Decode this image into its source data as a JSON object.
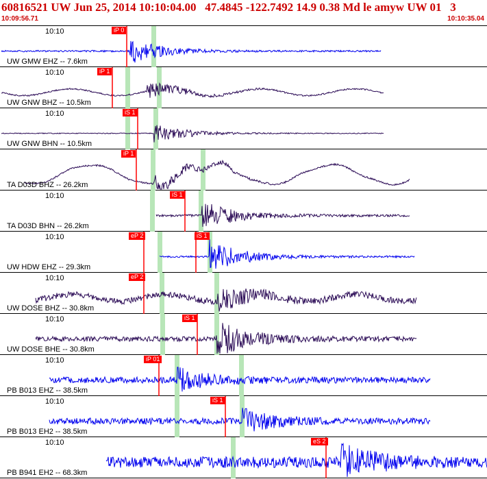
{
  "header": {
    "title": "60816521 UW Jun 25, 2014 10:10:04.00   47.4845 -122.7492 14.9 0.38 Md le amyw UW 01   3",
    "start_time": "10:09:56.71",
    "end_time": "10:10:35.04"
  },
  "colors": {
    "header_text": "#cc0000",
    "trace_blue": "#0000ee",
    "trace_purple": "#2a0a55",
    "pick_red": "#ff0000",
    "pick_band": "#b8e6b8"
  },
  "tick_label": "10:10",
  "traces": [
    {
      "label": "UW GMW EHZ -- 7.6km",
      "tick": "10:10",
      "color": "blue",
      "pick": {
        "text": "iP 0"
      },
      "pick2": null
    },
    {
      "label": "UW GNW BHZ -- 10.5km",
      "tick": "10:10",
      "color": "purple",
      "pick": {
        "text": "iP 1"
      },
      "pick2": null
    },
    {
      "label": "UW GNW BHN -- 10.5km",
      "tick": "10:10",
      "color": "purple",
      "pick": {
        "text": "iS 1"
      },
      "pick2": null
    },
    {
      "label": "TA D03D BHZ -- 26.2km",
      "tick": "",
      "color": "purple",
      "pick": {
        "text": "iP 1"
      },
      "pick2": null
    },
    {
      "label": "TA D03D BHN -- 26.2km",
      "tick": "10:10",
      "color": "purple",
      "pick": {
        "text": "iS 1"
      },
      "pick2": null
    },
    {
      "label": "UW HDW EHZ -- 29.3km",
      "tick": "10:10",
      "color": "blue",
      "pick": {
        "text": "eP 2"
      },
      "pick2": {
        "text": "iS 1"
      }
    },
    {
      "label": "UW DOSE BHZ -- 30.8km",
      "tick": "10:10",
      "color": "purple",
      "pick": {
        "text": "eP 2"
      },
      "pick2": null
    },
    {
      "label": "UW DOSE BHE -- 30.8km",
      "tick": "10:10",
      "color": "purple",
      "pick": {
        "text": "iS 1"
      },
      "pick2": null
    },
    {
      "label": "PB B013 EHZ -- 38.5km",
      "tick": "10:10",
      "color": "blue",
      "pick": {
        "text": "iP 01"
      },
      "pick2": null
    },
    {
      "label": "PB B013 EH2 -- 38.5km",
      "tick": "10:10",
      "color": "blue",
      "pick": {
        "text": "iS 1"
      },
      "pick2": null
    },
    {
      "label": "PB B941 EH2 -- 68.3km",
      "tick": "10:10",
      "color": "blue",
      "pick": {
        "text": "eS 2"
      },
      "pick2": null
    }
  ]
}
